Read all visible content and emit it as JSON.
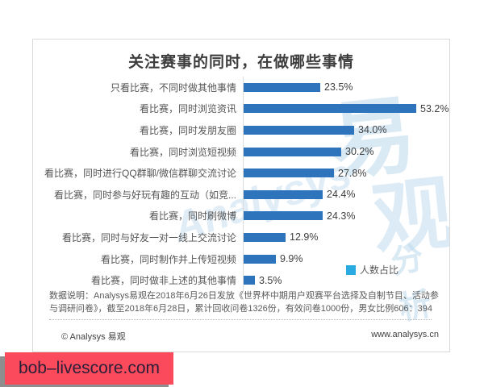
{
  "page": {
    "site_banner": "bob–livescore.com"
  },
  "watermark": {
    "en": "Analysys",
    "cn1": "易",
    "cn2": "观",
    "cn3": "分析"
  },
  "card": {
    "footnote": "数据说明：Analysys易观在2018年6月26日发放《世界杯中期用户观赛平台选择及自制节目、活动参与调研问卷》，截至2018年6月28日，累计回收问卷1326份，有效问卷1000份，男女比例606：394",
    "footer_left": "© Analysys 易观",
    "footer_right": "www.analysys.cn"
  },
  "chart_data": {
    "type": "bar",
    "orientation": "horizontal",
    "title": "关注赛事的同时，在做哪些事情",
    "categories": [
      "只看比赛，不同时做其他事情",
      "看比赛，同时浏览资讯",
      "看比赛，同时发朋友圈",
      "看比赛，同时浏览短视频",
      "看比赛，同时进行QQ群聊/微信群聊交流讨论",
      "看比赛，同时参与好玩有趣的互动（如竞...",
      "看比赛，同时刷微博",
      "看比赛，同时与好友一对一线上交流讨论",
      "看比赛，同时制作并上传短视频",
      "看比赛，同时做非上述的其他事情"
    ],
    "values": [
      23.5,
      53.2,
      34.0,
      30.2,
      27.8,
      24.4,
      24.3,
      12.9,
      9.9,
      3.5
    ],
    "value_labels": [
      "23.5%",
      "53.2%",
      "34.0%",
      "30.2%",
      "27.8%",
      "24.4%",
      "24.3%",
      "12.9%",
      "9.9%",
      "3.5%"
    ],
    "xlabel": "",
    "ylabel": "",
    "xlim": [
      0,
      55
    ],
    "grid": false,
    "bar_color": "#2e74bd",
    "legend_position": "bottom-right",
    "legend": [
      {
        "label": "人数占比",
        "color": "#29abe2"
      }
    ]
  }
}
